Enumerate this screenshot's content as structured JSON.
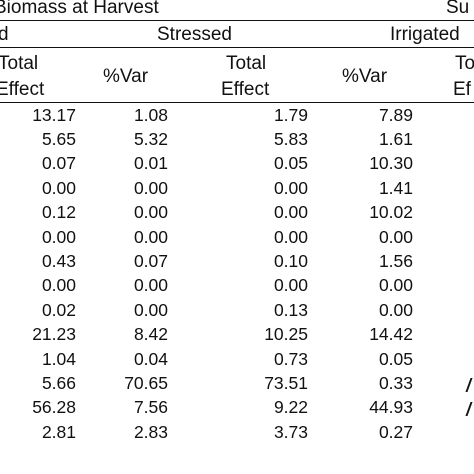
{
  "header": {
    "group_left": "Biomass at Harvest",
    "group_right": "Su",
    "sub_left_fragment": "d",
    "sub_stressed": "Stressed",
    "sub_irrigated": "Irrigated",
    "col_labels": {
      "c0_line1": "Total",
      "c0_line2": "Effect",
      "c1": "%Var",
      "c2_line1": "Total",
      "c2_line2": "Effect",
      "c3": "%Var",
      "c4_line1": "To",
      "c4_line2": "Ef"
    }
  },
  "rows": [
    [
      "13.17",
      "1.08",
      "1.79",
      "7.89"
    ],
    [
      "5.65",
      "5.32",
      "5.83",
      "1.61"
    ],
    [
      "0.07",
      "0.01",
      "0.05",
      "10.30"
    ],
    [
      "0.00",
      "0.00",
      "0.00",
      "1.41"
    ],
    [
      "0.12",
      "0.00",
      "0.00",
      "10.02"
    ],
    [
      "0.00",
      "0.00",
      "0.00",
      "0.00"
    ],
    [
      "0.43",
      "0.07",
      "0.10",
      "1.56"
    ],
    [
      "0.00",
      "0.00",
      "0.00",
      "0.00"
    ],
    [
      "0.02",
      "0.00",
      "0.13",
      "0.00"
    ],
    [
      "21.23",
      "8.42",
      "10.25",
      "14.42"
    ],
    [
      "1.04",
      "0.04",
      "0.73",
      "0.05"
    ],
    [
      "5.66",
      "70.65",
      "73.51",
      "0.33"
    ],
    [
      "56.28",
      "7.56",
      "9.22",
      "44.93"
    ],
    [
      "2.81",
      "2.83",
      "3.73",
      "0.27"
    ]
  ]
}
